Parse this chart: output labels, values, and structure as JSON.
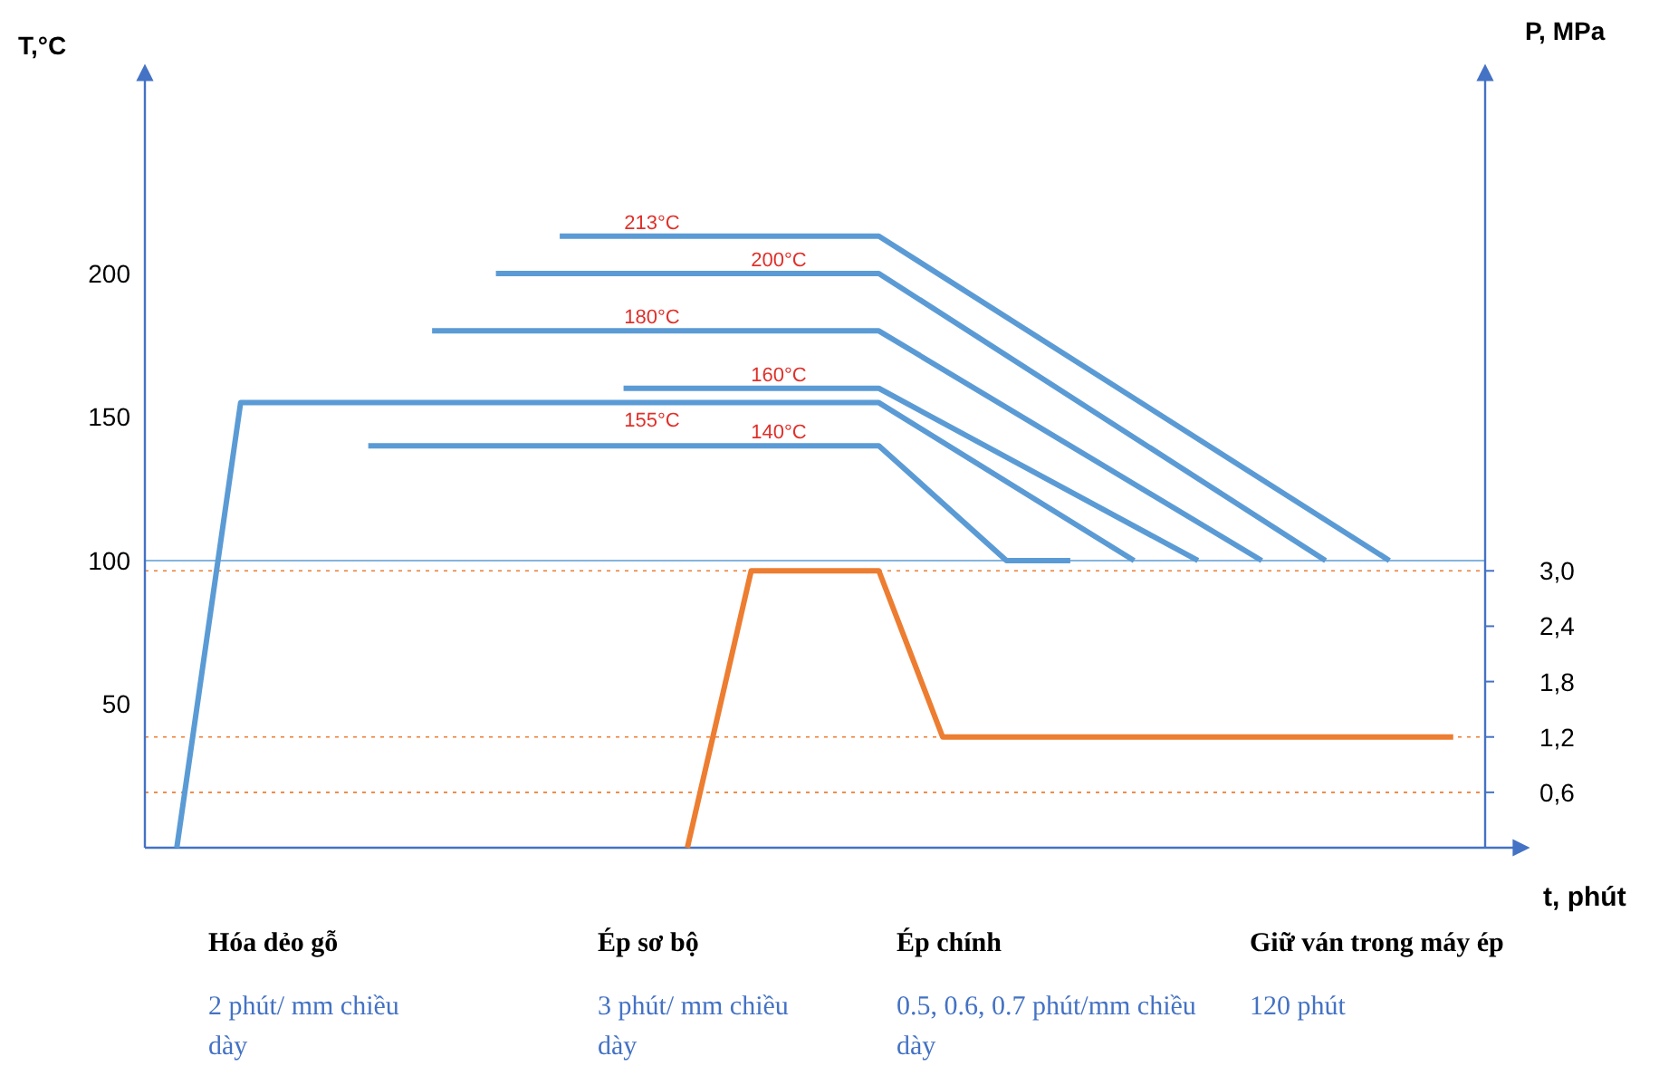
{
  "chart_data": {
    "type": "line",
    "ylabel": "T,°C",
    "y2label": "P, MPa",
    "xlabel": "t, phút",
    "categories": [
      null,
      null,
      null,
      null,
      null,
      null,
      null,
      null,
      null,
      null,
      null,
      null,
      null,
      null,
      null,
      null,
      null,
      null,
      null,
      null,
      null
    ],
    "ylim": [
      0,
      270
    ],
    "yticks": [
      50,
      100,
      150,
      200
    ],
    "y2lim": [
      0,
      8.4
    ],
    "y2ticks": [
      {
        "value": 0.6,
        "label": "0,6"
      },
      {
        "value": 1.2,
        "label": "1,2"
      },
      {
        "value": 1.8,
        "label": "1,8"
      },
      {
        "value": 2.4,
        "label": "2,4"
      },
      {
        "value": 3.0,
        "label": "3,0"
      }
    ],
    "series": [
      {
        "color": "#5b9bd5",
        "values": [
          null,
          null,
          null,
          null,
          null,
          null,
          213,
          213,
          null,
          null,
          213,
          213,
          null,
          null,
          null,
          null,
          null,
          null,
          null,
          100,
          null
        ]
      },
      {
        "color": "#5b9bd5",
        "values": [
          null,
          null,
          null,
          null,
          null,
          200,
          null,
          200,
          null,
          null,
          200,
          200,
          null,
          null,
          null,
          null,
          null,
          null,
          100,
          null,
          null
        ]
      },
      {
        "color": "#5b9bd5",
        "values": [
          null,
          null,
          null,
          null,
          180,
          null,
          null,
          180,
          null,
          null,
          180,
          180,
          null,
          null,
          null,
          null,
          null,
          100,
          null,
          null,
          null
        ]
      },
      {
        "color": "#5b9bd5",
        "values": [
          null,
          null,
          null,
          null,
          null,
          null,
          null,
          160,
          null,
          null,
          160,
          160,
          null,
          null,
          null,
          null,
          100,
          null,
          null,
          null,
          null
        ]
      },
      {
        "color": "#5b9bd5",
        "values": [
          0,
          155,
          155,
          null,
          null,
          null,
          null,
          155,
          null,
          null,
          155,
          155,
          null,
          null,
          null,
          100,
          null,
          null,
          null,
          null,
          null
        ]
      },
      {
        "color": "#5b9bd5",
        "values": [
          null,
          null,
          null,
          140,
          null,
          null,
          null,
          140,
          null,
          null,
          140,
          140,
          null,
          100,
          100,
          null,
          null,
          null,
          null,
          null,
          null
        ]
      },
      {
        "color": "#ed7d31",
        "axis": "y2",
        "values": [
          null,
          null,
          null,
          null,
          null,
          null,
          null,
          null,
          0,
          3.0,
          3.0,
          3.0,
          1.2,
          null,
          null,
          null,
          null,
          null,
          null,
          null,
          1.2
        ]
      }
    ],
    "ref_lines": [
      {
        "axis": "y",
        "value": 100,
        "color": "#5b9bd5"
      },
      {
        "axis": "y2",
        "value": 3.0,
        "color": "#ed7d31",
        "line_style": "dotted"
      },
      {
        "axis": "y2",
        "value": 1.2,
        "color": "#ed7d31",
        "line_style": "dotted"
      },
      {
        "axis": "y2",
        "value": 0.6,
        "color": "#ed7d31",
        "line_style": "dotted"
      }
    ],
    "annotations": [
      {
        "text": "213°C",
        "y": 213
      },
      {
        "text": "200°C",
        "y": 200
      },
      {
        "text": "180°C",
        "y": 180
      },
      {
        "text": "160°C",
        "y": 160
      },
      {
        "text": "155°C",
        "y": 155
      },
      {
        "text": "140°C",
        "y": 140
      },
      "Hóa dẻo gỗ",
      "2 phút/ mm chiều dày",
      "Ép sơ bộ",
      "3 phút/ mm chiều dày",
      "Ép chính",
      "0.5, 0.6, 0.7 phút/mm chiều dày",
      "Giữ ván trong máy ép",
      "120 phút"
    ],
    "grid": false,
    "marker": "none",
    "line_style": "solid"
  }
}
